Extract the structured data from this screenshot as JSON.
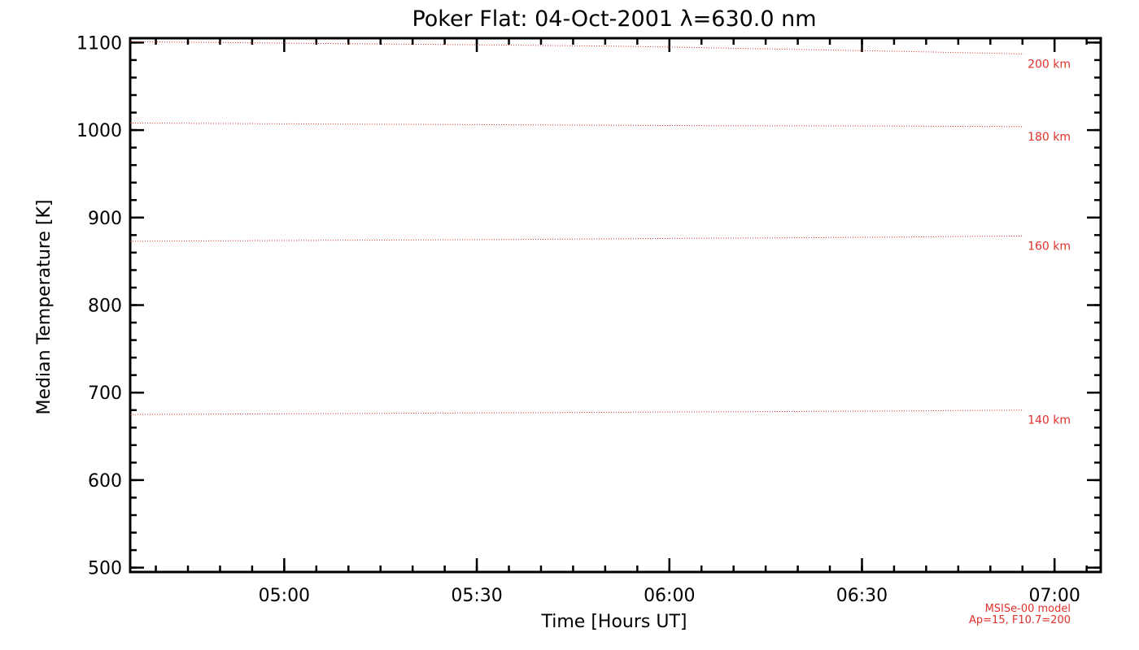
{
  "chart_data": {
    "type": "line",
    "title": "Poker Flat: 04-Oct-2001 λ=630.0 nm",
    "xlabel": "Time [Hours UT]",
    "ylabel": "Median Temperature [K]",
    "xlim": [
      4.6,
      7.12
    ],
    "ylim": [
      495,
      1105
    ],
    "x_ticks": [
      {
        "value": 5.0,
        "label": "05:00"
      },
      {
        "value": 5.5,
        "label": "05:30"
      },
      {
        "value": 6.0,
        "label": "06:00"
      },
      {
        "value": 6.5,
        "label": "06:30"
      },
      {
        "value": 7.0,
        "label": "07:00"
      }
    ],
    "y_ticks": [
      {
        "value": 500,
        "label": "500"
      },
      {
        "value": 600,
        "label": "600"
      },
      {
        "value": 700,
        "label": "700"
      },
      {
        "value": 800,
        "label": "800"
      },
      {
        "value": 900,
        "label": "900"
      },
      {
        "value": 1000,
        "label": "1000"
      },
      {
        "value": 1100,
        "label": "1100"
      }
    ],
    "x_minor_step": 0.0833333,
    "y_minor_step": 20,
    "grid": false,
    "line_style": "dotted",
    "series_color": "#e0302a",
    "x": [
      4.6,
      4.85,
      5.1,
      5.35,
      5.6,
      5.85,
      6.1,
      6.35,
      6.6,
      6.92
    ],
    "series": [
      {
        "name": "200 km",
        "label": "200 km",
        "values": [
          1101,
          1100,
          1099,
          1098,
          1097,
          1096,
          1094,
          1092,
          1090,
          1087
        ]
      },
      {
        "name": "180 km",
        "label": "180 km",
        "values": [
          1008,
          1007.5,
          1007,
          1006.5,
          1006,
          1005.5,
          1005,
          1004.8,
          1004.5,
          1004
        ]
      },
      {
        "name": "160 km",
        "label": "160 km",
        "values": [
          873,
          873.5,
          874,
          874.5,
          875,
          875.8,
          876.5,
          877,
          877.8,
          879
        ]
      },
      {
        "name": "140 km",
        "label": "140 km",
        "values": [
          675,
          675.5,
          676,
          676.5,
          677,
          677.5,
          678,
          678.5,
          679,
          680
        ]
      }
    ],
    "annotations": [
      "MSISe-00 model",
      "Ap=15, F10.7=200"
    ]
  }
}
